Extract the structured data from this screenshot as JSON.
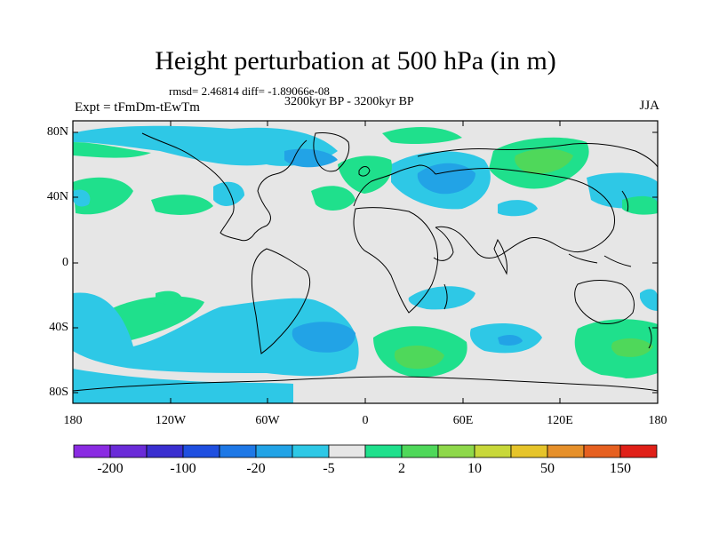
{
  "title": "Height perturbation at 500 hPa (in m)",
  "stats": "rmsd= 2.46814 diff= -1.89066e-08",
  "period": "3200kyr BP - 3200kyr BP",
  "experiment": "Expt = tFmDm-tEwTm",
  "season": "JJA",
  "y_labels": [
    "80N",
    "40N",
    "0",
    "40S",
    "80S"
  ],
  "x_labels": [
    "180",
    "120W",
    "60W",
    "0",
    "60E",
    "120E",
    "180"
  ],
  "colorbar": {
    "colors": [
      "#8a2be2",
      "#6a2bd8",
      "#3a2fd0",
      "#1f4fe0",
      "#1e78e6",
      "#22a3e6",
      "#2ec8e6",
      "#e6e6e6",
      "#1fe08c",
      "#4fd85a",
      "#8ed84a",
      "#c8d83a",
      "#e6c42a",
      "#e6902a",
      "#e66020",
      "#e02018"
    ],
    "labels": [
      "-200",
      "-100",
      "-20",
      "-5",
      "2",
      "10",
      "50",
      "150"
    ]
  },
  "palette": {
    "land_background": "#e6e6e6",
    "blue_light": "#2ec8e6",
    "blue_mid": "#22a3e6",
    "green_light": "#1fe08c",
    "green_mid": "#4fd85a"
  }
}
